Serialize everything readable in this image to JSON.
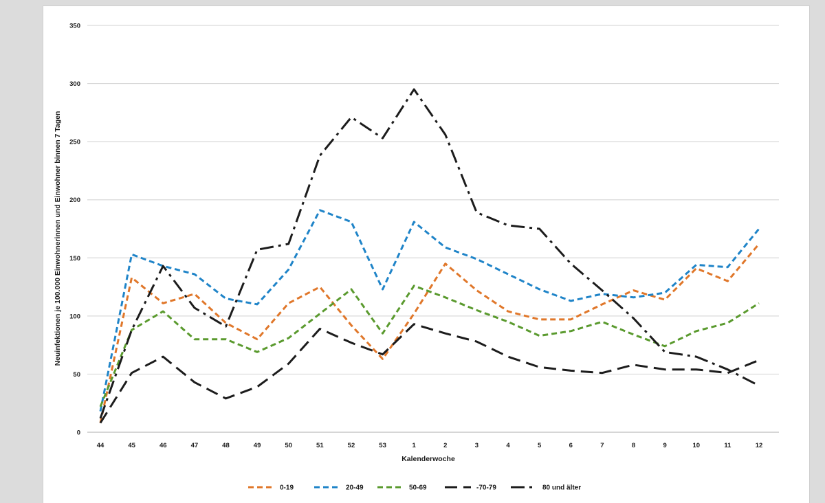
{
  "chart_data": {
    "type": "line",
    "xlabel": "Kalenderwoche",
    "ylabel": "Neuinfektionen je 100.000 Einwohnerinnen und Einwohner binnen 7 Tagen",
    "ylim": [
      0,
      350
    ],
    "yticks": [
      0,
      50,
      100,
      150,
      200,
      250,
      300,
      350
    ],
    "grid": true,
    "legend_position": "bottom",
    "categories": [
      "44",
      "45",
      "46",
      "47",
      "48",
      "49",
      "50",
      "51",
      "52",
      "53",
      "1",
      "2",
      "3",
      "4",
      "5",
      "6",
      "7",
      "8",
      "9",
      "10",
      "11",
      "12"
    ],
    "series": [
      {
        "name": "0-19",
        "color": "#e0772a",
        "dash": "dashed",
        "values": [
          8,
          133,
          111,
          119,
          94,
          80,
          111,
          125,
          92,
          63,
          102,
          145,
          122,
          104,
          97,
          97,
          110,
          122,
          114,
          141,
          130,
          162
        ]
      },
      {
        "name": "20-49",
        "color": "#1f84c8",
        "dash": "dashed",
        "values": [
          18,
          153,
          143,
          136,
          115,
          110,
          140,
          191,
          181,
          123,
          181,
          159,
          149,
          136,
          123,
          113,
          119,
          116,
          120,
          144,
          142,
          175
        ]
      },
      {
        "name": "50-69",
        "color": "#5a9a2e",
        "dash": "dashed",
        "values": [
          22,
          88,
          104,
          80,
          80,
          69,
          81,
          102,
          123,
          85,
          126,
          116,
          105,
          95,
          83,
          87,
          95,
          84,
          74,
          87,
          94,
          111
        ]
      },
      {
        "name": "-70-79",
        "color": "#1c1c1c",
        "dash": "longdash",
        "values": [
          8,
          51,
          65,
          43,
          29,
          39,
          59,
          89,
          77,
          67,
          93,
          85,
          78,
          65,
          56,
          53,
          51,
          58,
          54,
          54,
          51,
          62
        ]
      },
      {
        "name": "80 und älter",
        "color": "#1c1c1c",
        "dash": "dashdot",
        "values": [
          12,
          88,
          143,
          107,
          91,
          157,
          162,
          238,
          271,
          253,
          295,
          256,
          189,
          178,
          175,
          145,
          122,
          98,
          69,
          65,
          54,
          40
        ]
      }
    ]
  }
}
